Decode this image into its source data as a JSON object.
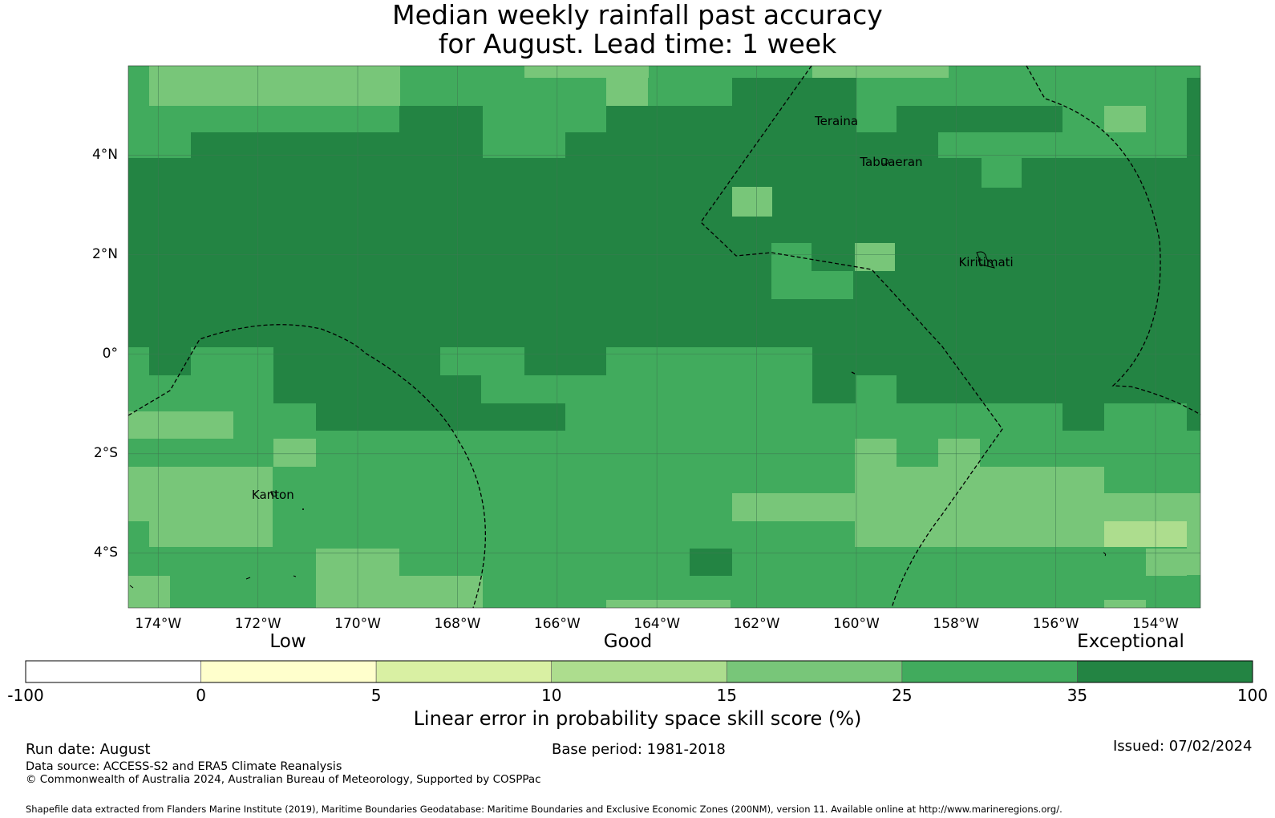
{
  "title_line1": "Median weekly rainfall past accuracy",
  "title_line2": "for August. Lead time: 1 week",
  "colors": {
    "c_white": "#ffffff",
    "c_0_5": "#ffffcc",
    "c_5_10": "#d9f0a3",
    "c_10_15": "#addd8e",
    "c_15_25": "#78c679",
    "c_25_35": "#41ab5d",
    "c_35_100": "#238443",
    "grid": "#3f7a52",
    "boundary": "#000000"
  },
  "map": {
    "lon_min": -174.6,
    "lon_max": -153.1,
    "lat_min": -5.1,
    "lat_max": 5.8,
    "lon_ticks": [
      -174,
      -172,
      -170,
      -168,
      -166,
      -164,
      -162,
      -160,
      -158,
      -156,
      -154
    ],
    "lon_tick_labels": [
      "174°W",
      "172°W",
      "170°W",
      "168°W",
      "166°W",
      "164°W",
      "162°W",
      "160°W",
      "158°W",
      "156°W",
      "154°W"
    ],
    "lat_ticks": [
      4,
      2,
      0,
      -2,
      -4
    ],
    "lat_tick_labels": [
      "4°N",
      "2°N",
      "0°",
      "2°S",
      "4°S"
    ],
    "islands": [
      {
        "name": "Teraina",
        "lon": -160.4,
        "lat": 4.68
      },
      {
        "name": "Tabuaeran",
        "lon": -159.3,
        "lat": 3.87
      },
      {
        "name": "Kiritimati",
        "lon": -157.4,
        "lat": 1.85
      },
      {
        "name": "Kanton",
        "lon": -171.7,
        "lat": -2.82
      }
    ]
  },
  "colorbar": {
    "categories": [
      "Low",
      "Good",
      "Exceptional"
    ],
    "bounds": [
      "-100",
      "0",
      "5",
      "10",
      "15",
      "25",
      "35",
      "100"
    ],
    "label": "Linear error in probability space skill score (%)"
  },
  "footer": {
    "run_date": "Run date: August",
    "base_period": "Base period: 1981-2018",
    "issued": "Issued: 07/02/2024",
    "data_source": "Data source: ACCESS-S2 and ERA5 Climate Reanalysis",
    "copyright": "© Commonwealth of Australia 2024, Australian Bureau of Meteorology, Supported by COSPPac",
    "shapefile": "Shapefile data extracted from Flanders Marine Institute (2019), Maritime Boundaries Geodatabase: Maritime Boundaries and Exclusive Economic Zones (200NM), version 11. Available online at http://www.marineregions.org/."
  }
}
